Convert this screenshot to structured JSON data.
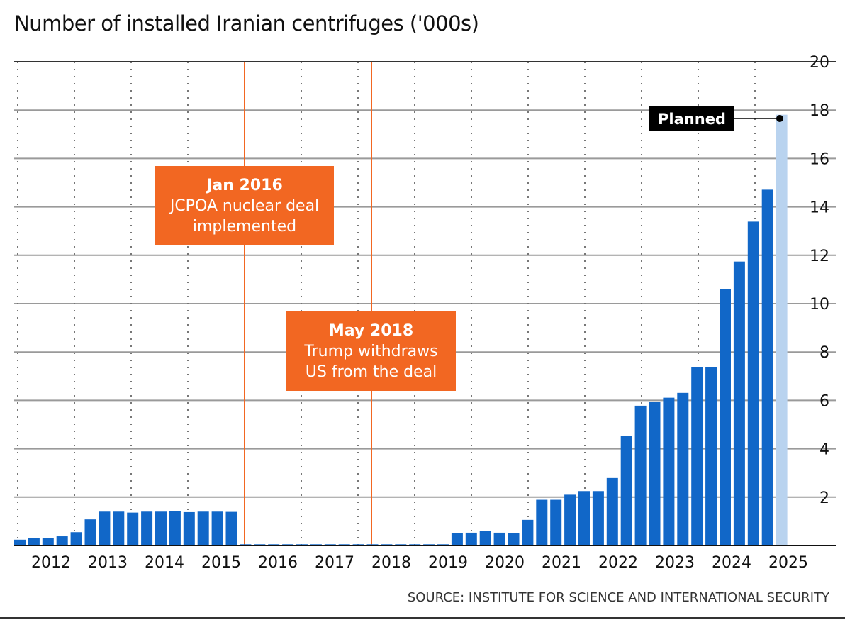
{
  "chart_data": {
    "type": "bar",
    "title": "Number of installed Iranian centrifuges ('000s)",
    "source": "SOURCE:  INSTITUTE FOR SCIENCE AND INTERNATIONAL SECURITY",
    "ylabel": "",
    "xlabel": "",
    "ylim": [
      0,
      20
    ],
    "yticks": [
      "2",
      "4",
      "6",
      "8",
      "10",
      "12",
      "14",
      "16",
      "18",
      "20"
    ],
    "xtick_labels": [
      "2012",
      "2013",
      "2014",
      "2015",
      "2016",
      "2017",
      "2018",
      "2019",
      "2020",
      "2021",
      "2022",
      "2023",
      "2024",
      "2025"
    ],
    "values": [
      0.24,
      0.32,
      0.31,
      0.38,
      0.55,
      1.08,
      1.4,
      1.4,
      1.36,
      1.4,
      1.4,
      1.42,
      1.38,
      1.4,
      1.4,
      1.39,
      0.05,
      0.05,
      0.05,
      0.05,
      0.05,
      0.05,
      0.05,
      0.05,
      0.05,
      0.05,
      0.05,
      0.05,
      0.05,
      0.05,
      0.05,
      0.5,
      0.53,
      0.59,
      0.53,
      0.51,
      1.06,
      1.89,
      1.89,
      2.1,
      2.25,
      2.25,
      2.79,
      4.54,
      5.78,
      5.94,
      6.11,
      6.31,
      7.39,
      7.39,
      10.61,
      11.74,
      13.39,
      14.71,
      17.81
    ],
    "planned_index": 54,
    "colors": {
      "bar": "#1167C8",
      "planned": "#B9D3EF",
      "annotation": "#F26722",
      "grid": "#9a9a9a"
    },
    "annotations": [
      {
        "title": "Jan 2016",
        "line1": "JCPOA nuclear deal",
        "line2": "implemented"
      },
      {
        "title": "May 2018",
        "line1": "Trump withdraws",
        "line2": "US from the deal"
      }
    ],
    "planned_label": "Planned"
  }
}
